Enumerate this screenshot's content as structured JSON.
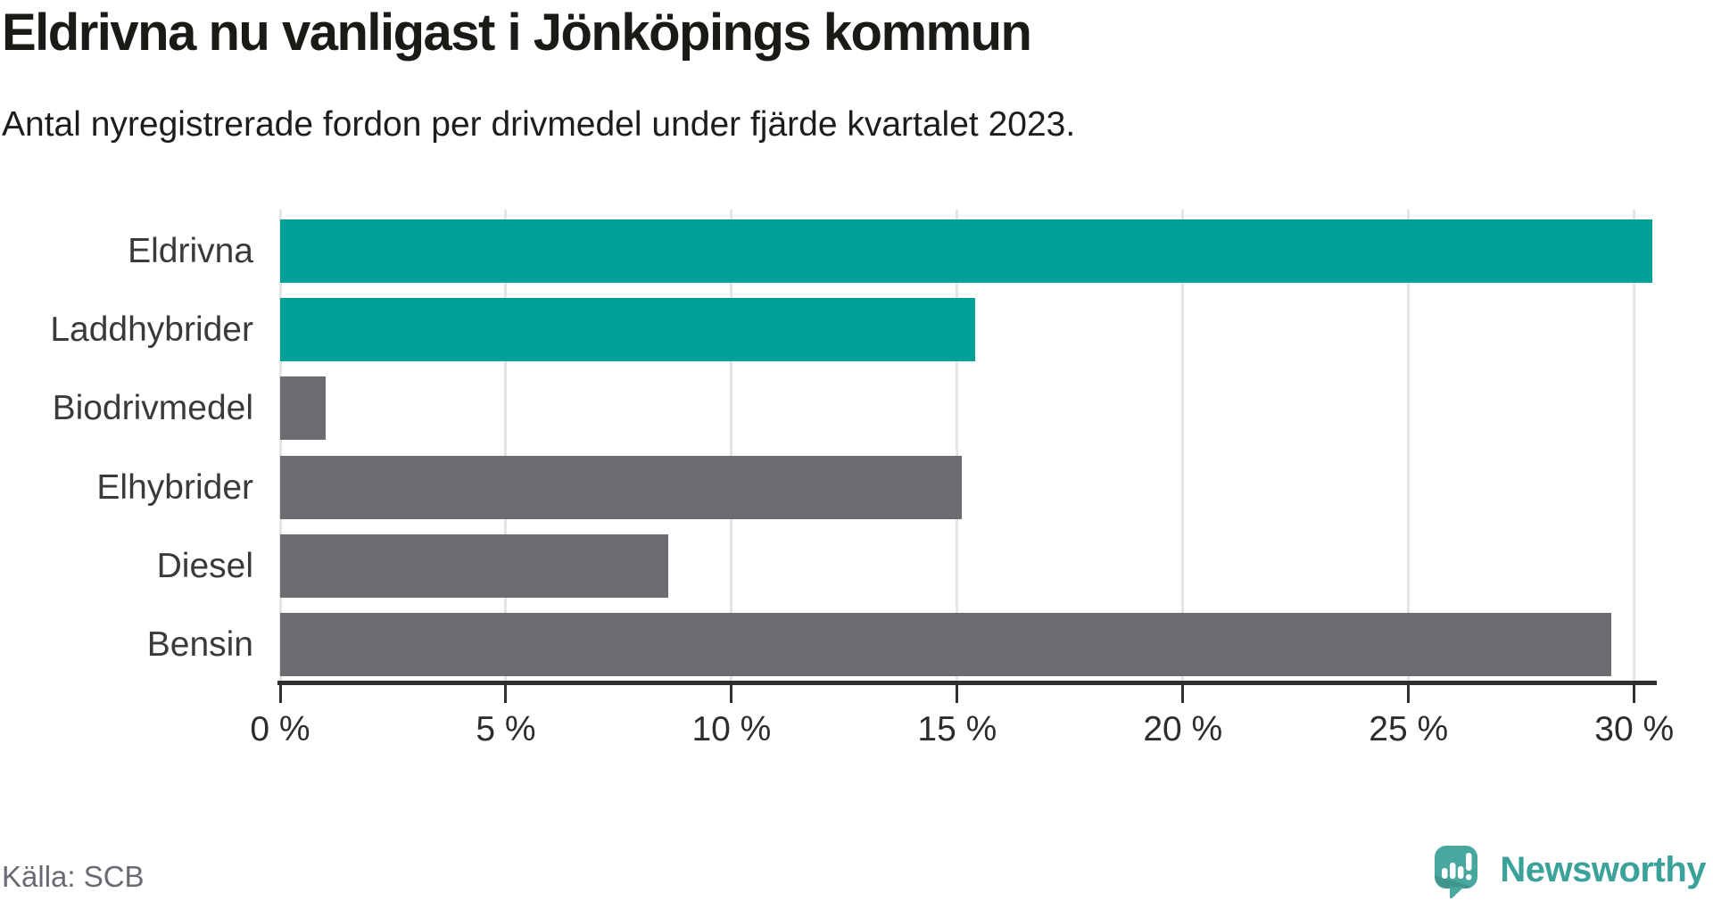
{
  "header": {
    "title": "Eldrivna nu vanligast i Jönköpings kommun",
    "subtitle": "Antal nyregistrerade fordon per drivmedel under fjärde kvartalet 2023."
  },
  "chart_data": {
    "type": "bar",
    "orientation": "horizontal",
    "title": "Eldrivna nu vanligast i Jönköpings kommun",
    "subtitle": "Antal nyregistrerade fordon per drivmedel under fjärde kvartalet 2023.",
    "categories": [
      "Eldrivna",
      "Laddhybrider",
      "Biodrivmedel",
      "Elhybrider",
      "Diesel",
      "Bensin"
    ],
    "values": [
      30.4,
      15.4,
      1.0,
      15.1,
      8.6,
      29.5
    ],
    "unit": "%",
    "bar_colors": [
      "#00a096",
      "#00a096",
      "#6c6d71",
      "#6c6d71",
      "#6c6d71",
      "#6c6d71"
    ],
    "xticks": [
      0,
      5,
      10,
      15,
      20,
      25,
      30
    ],
    "xtick_labels": [
      "0 %",
      "5 %",
      "10 %",
      "15 %",
      "20 %",
      "25 %",
      "30 %"
    ],
    "xlim": [
      0,
      30.5
    ],
    "grid": true,
    "legend": "none"
  },
  "footer": {
    "source": "Källa: SCB",
    "brand": "Newsworthy",
    "brand_icon": "newsworthy-speech-bubble-bar-chart-icon"
  },
  "colors": {
    "highlight_bar": "#00a096",
    "default_bar": "#6c6d71",
    "gridline": "#e5e5e5",
    "axis": "#303030",
    "title_text": "#1a1a17",
    "label_text": "#3a3a3a",
    "source_text": "#6a6a72",
    "logo_teal": "#48a79e",
    "brand_text_color": "#3aa29a"
  }
}
